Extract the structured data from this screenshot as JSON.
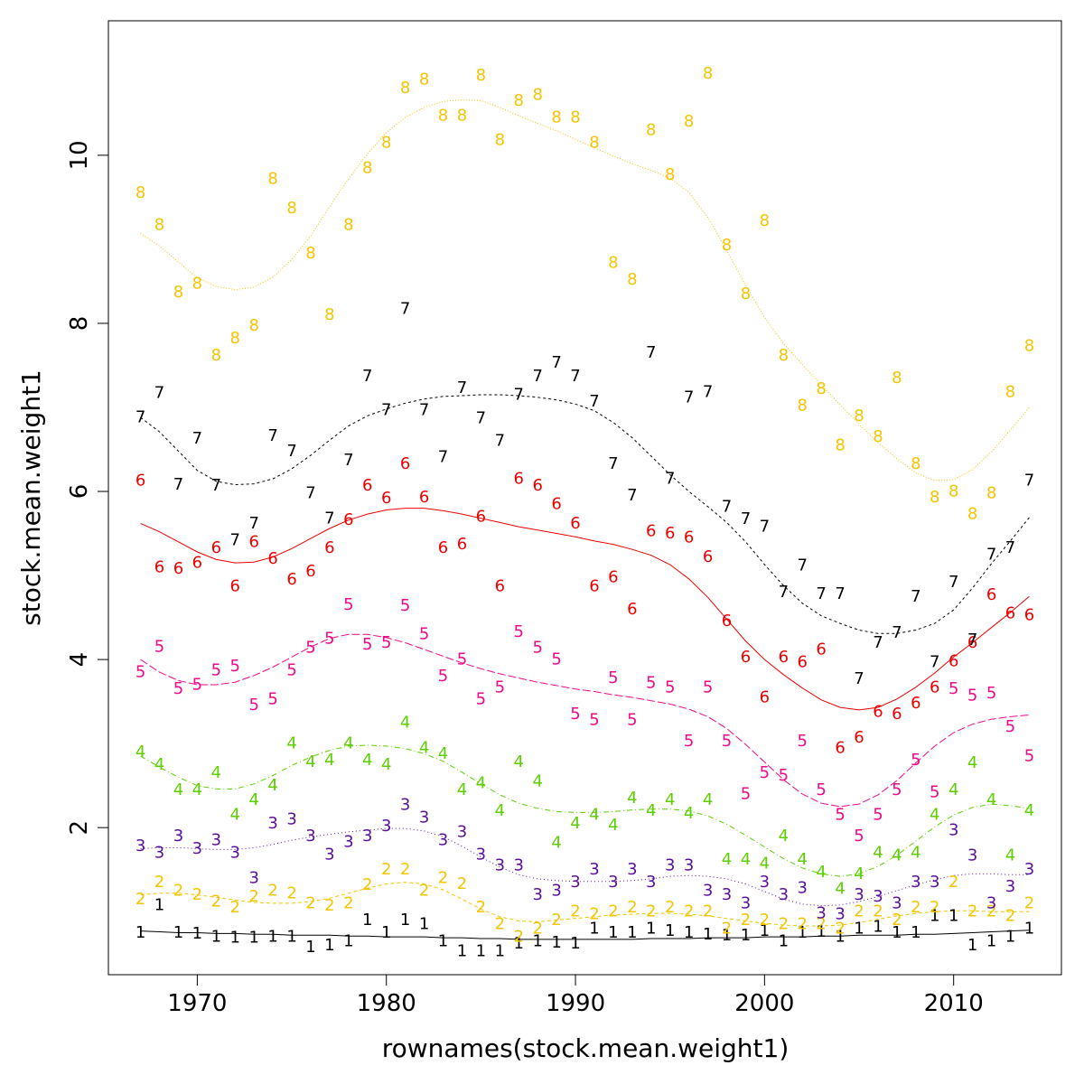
{
  "chart_data": {
    "type": "scatter",
    "title": "",
    "xlabel": "rownames(stock.mean.weight1)",
    "ylabel": "stock.mean.weight1",
    "xlim": [
      1965.3,
      2015.7
    ],
    "ylim": [
      0.25,
      11.6
    ],
    "xticks": [
      1970,
      1980,
      1990,
      2000,
      2010
    ],
    "yticks": [
      2,
      4,
      6,
      8,
      10
    ],
    "grid": false,
    "legend": "none",
    "points_as_labels": true,
    "x": [
      1967,
      1968,
      1969,
      1970,
      1971,
      1972,
      1973,
      1974,
      1975,
      1976,
      1977,
      1978,
      1979,
      1980,
      1981,
      1982,
      1983,
      1984,
      1985,
      1986,
      1987,
      1988,
      1989,
      1990,
      1991,
      1992,
      1993,
      1994,
      1995,
      1996,
      1997,
      1998,
      1999,
      2000,
      2001,
      2002,
      2003,
      2004,
      2005,
      2006,
      2007,
      2008,
      2009,
      2010,
      2011,
      2012,
      2013,
      2014
    ],
    "series": [
      {
        "name": "1",
        "color": "#000000",
        "dash": "solid",
        "values": [
          0.75,
          1.08,
          0.75,
          0.74,
          0.7,
          0.69,
          0.69,
          0.7,
          0.7,
          0.58,
          0.6,
          0.65,
          0.9,
          0.75,
          0.9,
          0.85,
          0.65,
          0.53,
          0.53,
          0.53,
          0.62,
          0.65,
          0.63,
          0.62,
          0.8,
          0.75,
          0.75,
          0.8,
          0.77,
          0.75,
          0.73,
          0.72,
          0.72,
          0.77,
          0.65,
          0.75,
          0.76,
          0.7,
          0.8,
          0.82,
          0.75,
          0.75,
          0.95,
          0.95,
          0.6,
          0.65,
          0.7,
          0.8
        ],
        "smooth": [
          0.77,
          0.76,
          0.75,
          0.75,
          0.74,
          0.74,
          0.73,
          0.73,
          0.72,
          0.72,
          0.72,
          0.71,
          0.71,
          0.7,
          0.7,
          0.7,
          0.69,
          0.69,
          0.68,
          0.68,
          0.67,
          0.67,
          0.67,
          0.67,
          0.67,
          0.67,
          0.67,
          0.68,
          0.68,
          0.68,
          0.69,
          0.69,
          0.69,
          0.7,
          0.7,
          0.7,
          0.71,
          0.71,
          0.72,
          0.72,
          0.72,
          0.73,
          0.73,
          0.74,
          0.75,
          0.76,
          0.77,
          0.78
        ]
      },
      {
        "name": "2",
        "color": "#f5c400",
        "dash": "4,3",
        "values": [
          1.15,
          1.35,
          1.25,
          1.2,
          1.12,
          1.05,
          1.18,
          1.25,
          1.22,
          1.1,
          1.07,
          1.1,
          1.32,
          1.5,
          1.5,
          1.25,
          1.4,
          1.33,
          1.05,
          0.85,
          0.7,
          0.8,
          0.9,
          1.0,
          0.97,
          1.0,
          1.05,
          1.0,
          1.05,
          1.0,
          1.0,
          0.8,
          0.9,
          0.9,
          0.85,
          0.85,
          0.85,
          0.8,
          1.0,
          1.0,
          0.9,
          1.05,
          1.05,
          1.35,
          1.0,
          1.0,
          0.95,
          1.1
        ],
        "smooth": [
          1.2,
          1.22,
          1.22,
          1.2,
          1.17,
          1.14,
          1.11,
          1.1,
          1.1,
          1.12,
          1.16,
          1.22,
          1.28,
          1.33,
          1.35,
          1.33,
          1.26,
          1.15,
          1.03,
          0.94,
          0.89,
          0.88,
          0.9,
          0.92,
          0.94,
          0.96,
          0.97,
          0.98,
          0.98,
          0.97,
          0.95,
          0.92,
          0.89,
          0.86,
          0.84,
          0.83,
          0.83,
          0.84,
          0.87,
          0.91,
          0.95,
          0.98,
          1.0,
          1.01,
          1.01,
          1.0,
          1.0,
          1.0
        ]
      },
      {
        "name": "3",
        "color": "#5a0f9b",
        "dash": "1,3",
        "values": [
          1.78,
          1.7,
          1.9,
          1.75,
          1.85,
          1.7,
          1.4,
          2.05,
          2.1,
          1.9,
          1.68,
          1.83,
          1.9,
          2.02,
          2.27,
          2.12,
          1.85,
          1.95,
          1.68,
          1.55,
          1.55,
          1.2,
          1.25,
          1.35,
          1.5,
          1.35,
          1.5,
          1.35,
          1.55,
          1.55,
          1.25,
          1.2,
          1.1,
          1.35,
          1.2,
          1.28,
          0.98,
          0.97,
          1.2,
          1.18,
          1.1,
          1.35,
          1.35,
          1.97,
          1.67,
          1.1,
          1.3,
          1.5
        ],
        "smooth": [
          1.75,
          1.76,
          1.76,
          1.75,
          1.74,
          1.74,
          1.76,
          1.8,
          1.85,
          1.89,
          1.92,
          1.95,
          1.97,
          1.99,
          1.99,
          1.96,
          1.89,
          1.78,
          1.65,
          1.53,
          1.44,
          1.39,
          1.37,
          1.36,
          1.36,
          1.36,
          1.37,
          1.39,
          1.42,
          1.43,
          1.42,
          1.39,
          1.33,
          1.24,
          1.15,
          1.09,
          1.07,
          1.08,
          1.12,
          1.18,
          1.25,
          1.32,
          1.38,
          1.43,
          1.45,
          1.45,
          1.44,
          1.44
        ]
      },
      {
        "name": "4",
        "color": "#5ccf00",
        "dash": "6,3,1,3",
        "values": [
          2.9,
          2.75,
          2.45,
          2.45,
          2.65,
          2.15,
          2.33,
          2.5,
          3.0,
          2.78,
          2.8,
          3.0,
          2.8,
          2.75,
          3.25,
          2.95,
          2.88,
          2.45,
          2.53,
          2.2,
          2.78,
          2.55,
          1.82,
          2.05,
          2.15,
          2.03,
          2.35,
          2.2,
          2.33,
          2.17,
          2.33,
          1.62,
          1.62,
          1.57,
          1.9,
          1.62,
          1.47,
          1.27,
          1.45,
          1.7,
          1.67,
          1.7,
          2.15,
          2.45,
          2.77,
          2.33,
          1.67,
          2.2
        ],
        "smooth": [
          2.85,
          2.72,
          2.6,
          2.5,
          2.46,
          2.46,
          2.52,
          2.62,
          2.74,
          2.84,
          2.92,
          2.97,
          2.98,
          2.97,
          2.94,
          2.88,
          2.79,
          2.66,
          2.52,
          2.39,
          2.29,
          2.23,
          2.19,
          2.18,
          2.18,
          2.19,
          2.21,
          2.22,
          2.22,
          2.2,
          2.14,
          2.04,
          1.91,
          1.77,
          1.63,
          1.52,
          1.45,
          1.42,
          1.45,
          1.54,
          1.67,
          1.84,
          2.01,
          2.15,
          2.24,
          2.28,
          2.26,
          2.23
        ]
      },
      {
        "name": "5",
        "color": "#ee0a8a",
        "dash": "9,3",
        "values": [
          3.85,
          4.15,
          3.65,
          3.7,
          3.87,
          3.92,
          3.46,
          3.53,
          3.87,
          4.14,
          4.25,
          4.65,
          4.18,
          4.2,
          4.64,
          4.3,
          3.8,
          4.0,
          3.53,
          3.67,
          4.33,
          4.14,
          4.0,
          3.35,
          3.28,
          3.78,
          3.28,
          3.72,
          3.67,
          3.03,
          3.67,
          3.03,
          2.4,
          2.65,
          2.62,
          3.03,
          2.45,
          2.15,
          1.9,
          2.15,
          2.45,
          2.8,
          2.42,
          3.65,
          3.57,
          3.6,
          3.2,
          2.85
        ],
        "smooth": [
          4.0,
          3.85,
          3.75,
          3.7,
          3.7,
          3.73,
          3.81,
          3.91,
          4.03,
          4.15,
          4.25,
          4.3,
          4.3,
          4.26,
          4.2,
          4.12,
          4.04,
          3.96,
          3.89,
          3.83,
          3.78,
          3.73,
          3.69,
          3.65,
          3.62,
          3.58,
          3.55,
          3.51,
          3.47,
          3.41,
          3.32,
          3.18,
          2.99,
          2.78,
          2.57,
          2.4,
          2.29,
          2.25,
          2.28,
          2.39,
          2.56,
          2.77,
          2.97,
          3.13,
          3.23,
          3.29,
          3.32,
          3.34
        ]
      },
      {
        "name": "6",
        "color": "#ee0000",
        "dash": "solid",
        "values": [
          6.13,
          5.1,
          5.08,
          5.15,
          5.33,
          4.87,
          5.4,
          5.2,
          4.95,
          5.05,
          5.33,
          5.66,
          6.07,
          5.92,
          6.33,
          5.93,
          5.33,
          5.37,
          5.7,
          4.87,
          6.15,
          6.07,
          5.85,
          5.62,
          4.87,
          4.98,
          4.6,
          5.53,
          5.5,
          5.45,
          5.22,
          4.46,
          4.03,
          3.55,
          4.03,
          3.97,
          4.12,
          2.95,
          3.07,
          3.38,
          3.35,
          3.48,
          3.67,
          3.98,
          4.2,
          4.77,
          4.55,
          4.53
        ],
        "smooth": [
          5.62,
          5.52,
          5.4,
          5.28,
          5.19,
          5.15,
          5.16,
          5.22,
          5.32,
          5.44,
          5.56,
          5.66,
          5.73,
          5.78,
          5.8,
          5.8,
          5.77,
          5.73,
          5.68,
          5.63,
          5.58,
          5.54,
          5.5,
          5.46,
          5.41,
          5.37,
          5.31,
          5.24,
          5.13,
          4.96,
          4.74,
          4.48,
          4.22,
          4.0,
          3.82,
          3.66,
          3.52,
          3.43,
          3.4,
          3.43,
          3.53,
          3.67,
          3.84,
          4.03,
          4.2,
          4.38,
          4.56,
          4.75
        ]
      },
      {
        "name": "7",
        "color": "#000000",
        "dash": "3,3",
        "values": [
          6.88,
          7.17,
          6.08,
          6.63,
          6.07,
          5.42,
          5.62,
          6.66,
          6.48,
          5.98,
          5.68,
          6.37,
          7.37,
          6.97,
          8.17,
          6.97,
          6.41,
          7.23,
          6.87,
          6.6,
          7.15,
          7.37,
          7.53,
          7.37,
          7.07,
          6.33,
          5.95,
          7.65,
          6.15,
          7.12,
          7.18,
          5.82,
          5.67,
          5.58,
          4.8,
          5.12,
          4.78,
          4.78,
          3.77,
          4.2,
          4.32,
          4.75,
          3.97,
          4.92,
          4.23,
          5.25,
          5.33,
          6.13
        ],
        "smooth": [
          6.88,
          6.71,
          6.48,
          6.25,
          6.12,
          6.08,
          6.09,
          6.15,
          6.27,
          6.43,
          6.61,
          6.78,
          6.9,
          6.98,
          7.05,
          7.1,
          7.13,
          7.14,
          7.15,
          7.15,
          7.14,
          7.12,
          7.09,
          7.04,
          6.96,
          6.82,
          6.64,
          6.42,
          6.2,
          6.0,
          5.82,
          5.63,
          5.4,
          5.13,
          4.88,
          4.67,
          4.52,
          4.43,
          4.35,
          4.31,
          4.31,
          4.35,
          4.43,
          4.59,
          4.85,
          5.14,
          5.41,
          5.69
        ]
      },
      {
        "name": "8",
        "color": "#f5c400",
        "dash": "1,2",
        "values": [
          9.55,
          9.17,
          8.37,
          8.47,
          7.62,
          7.82,
          7.97,
          9.72,
          9.37,
          8.83,
          8.1,
          9.17,
          9.85,
          10.15,
          10.8,
          10.9,
          10.47,
          10.47,
          10.95,
          10.18,
          10.65,
          10.72,
          10.45,
          10.45,
          10.15,
          8.72,
          8.52,
          10.3,
          9.77,
          10.4,
          10.97,
          8.93,
          8.35,
          9.22,
          7.62,
          7.02,
          7.22,
          6.55,
          6.9,
          6.65,
          7.35,
          6.33,
          5.93,
          6.0,
          5.73,
          5.98,
          7.18,
          7.73
        ],
        "smooth": [
          9.07,
          8.92,
          8.73,
          8.54,
          8.44,
          8.4,
          8.43,
          8.55,
          8.76,
          9.04,
          9.39,
          9.72,
          10.02,
          10.27,
          10.45,
          10.57,
          10.64,
          10.66,
          10.65,
          10.57,
          10.47,
          10.38,
          10.29,
          10.19,
          10.09,
          9.99,
          9.9,
          9.82,
          9.73,
          9.56,
          9.26,
          8.87,
          8.45,
          8.07,
          7.76,
          7.51,
          7.27,
          7.03,
          6.8,
          6.58,
          6.39,
          6.22,
          6.13,
          6.14,
          6.26,
          6.47,
          6.73,
          7.0
        ]
      }
    ]
  }
}
